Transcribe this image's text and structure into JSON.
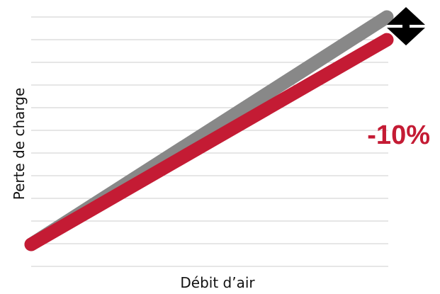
{
  "chart_data": {
    "type": "line",
    "title": "",
    "xlabel": "Débit d’air",
    "ylabel": "Perte de charge",
    "grid": true,
    "legend": "none",
    "series": [
      {
        "color": "#888888",
        "x": [
          0,
          1
        ],
        "y": [
          0,
          1
        ]
      },
      {
        "color": "#c41b34",
        "x": [
          0,
          1
        ],
        "y": [
          0,
          0.9
        ]
      }
    ],
    "annotation": {
      "text": "-10%",
      "color": "#c41b34",
      "arrow": "double-headed vertical between line end points"
    },
    "colors": {
      "grid": "#cccccc",
      "arrow": "#000000"
    }
  }
}
